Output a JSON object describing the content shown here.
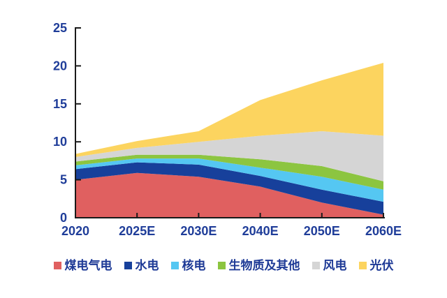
{
  "colors": {
    "axis_line": "#1a1a1a",
    "tick_label": "#1F3D99",
    "legend_text": "#1E3A96",
    "background": "#ffffff"
  },
  "chart_data": {
    "type": "area",
    "stacked": true,
    "title": "",
    "xlabel": "",
    "ylabel": "",
    "grid": false,
    "legend_position": "bottom",
    "categories": [
      "2020",
      "2025E",
      "2030E",
      "2040E",
      "2050E",
      "2060E"
    ],
    "series": [
      {
        "key": "coal-gas",
        "name": "煤电气电",
        "color": "#E06060",
        "values": [
          5.0,
          5.9,
          5.4,
          4.1,
          2.0,
          0.4
        ]
      },
      {
        "key": "hydro",
        "name": "水电",
        "color": "#17409B",
        "values": [
          1.4,
          1.4,
          1.6,
          1.4,
          1.7,
          1.7
        ]
      },
      {
        "key": "nuclear",
        "name": "核电",
        "color": "#55C7F2",
        "values": [
          0.5,
          0.5,
          0.8,
          1.1,
          1.7,
          1.6
        ]
      },
      {
        "key": "biomass-other",
        "name": "生物质及其他",
        "color": "#8CC540",
        "values": [
          0.5,
          0.5,
          0.5,
          1.1,
          1.4,
          1.1
        ]
      },
      {
        "key": "wind",
        "name": "风电",
        "color": "#D5D5D5",
        "values": [
          0.6,
          0.9,
          1.7,
          3.1,
          4.6,
          6.0
        ]
      },
      {
        "key": "solar",
        "name": "光伏",
        "color": "#FCD45F",
        "values": [
          0.4,
          0.9,
          1.4,
          4.7,
          6.7,
          9.6
        ]
      }
    ],
    "y_axis": {
      "min": 0,
      "max": 25,
      "step": 5,
      "tick_labels": [
        "0",
        "5",
        "10",
        "15",
        "20",
        "25"
      ]
    },
    "x_axis": {
      "tick_labels": [
        "2020",
        "2025E",
        "2030E",
        "2040E",
        "2050E",
        "2060E"
      ]
    }
  }
}
